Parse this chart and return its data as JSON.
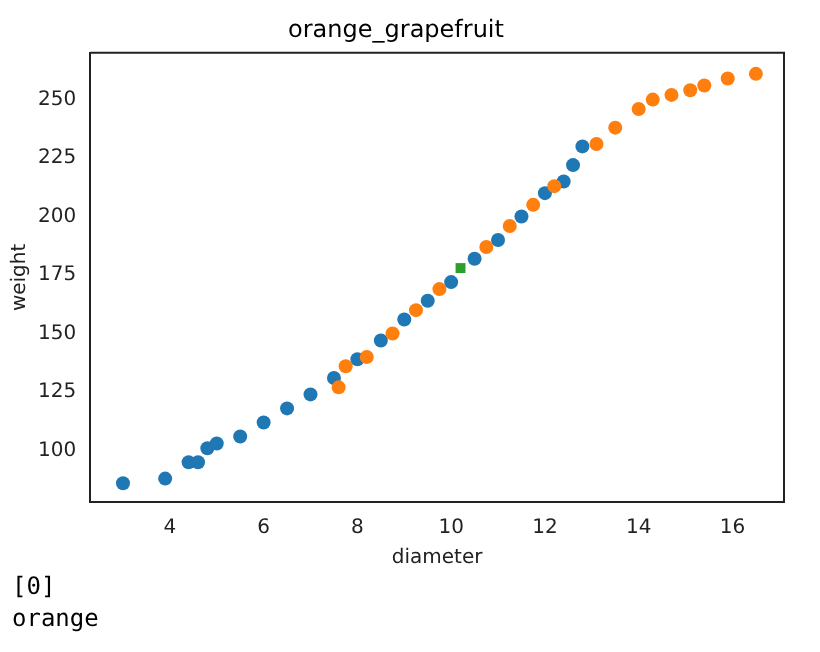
{
  "chart_data": {
    "type": "scatter",
    "title": "orange_grapefruit",
    "xlabel": "diameter",
    "ylabel": "weight",
    "xlim": [
      2.3,
      17.1
    ],
    "ylim": [
      78,
      270
    ],
    "xticks": [
      4,
      6,
      8,
      10,
      12,
      14,
      16
    ],
    "yticks": [
      100,
      125,
      150,
      175,
      200,
      225,
      250
    ],
    "grid": false,
    "marker": "circle",
    "series": [
      {
        "color": "#1f77b4",
        "x": [
          3.0,
          3.9,
          4.4,
          4.6,
          4.8,
          5.0,
          5.5,
          6.0,
          6.5,
          7.0,
          7.5,
          8.0,
          8.5,
          9.0,
          9.5,
          10.0,
          10.5,
          11.0,
          11.5,
          12.0,
          12.4,
          12.6,
          12.8
        ],
        "values": [
          86,
          88,
          95,
          95,
          101,
          103,
          106,
          112,
          118,
          124,
          131,
          139,
          147,
          156,
          164,
          172,
          182,
          190,
          200,
          210,
          215,
          222,
          230
        ]
      },
      {
        "color": "#ff7f0e",
        "x": [
          7.6,
          7.75,
          8.2,
          8.75,
          9.25,
          9.75,
          10.75,
          11.25,
          11.75,
          12.2,
          13.1,
          13.5,
          14.0,
          14.3,
          14.7,
          15.1,
          15.4,
          15.9,
          16.5
        ],
        "values": [
          127,
          136,
          140,
          150,
          160,
          169,
          187,
          196,
          205,
          213,
          231,
          238,
          246,
          250,
          252,
          254,
          256,
          259,
          261
        ]
      },
      {
        "color": "#2ca02c",
        "marker": "square",
        "x": [
          10.2
        ],
        "values": [
          178
        ]
      }
    ],
    "annotations": [
      "[0]",
      "orange"
    ]
  }
}
